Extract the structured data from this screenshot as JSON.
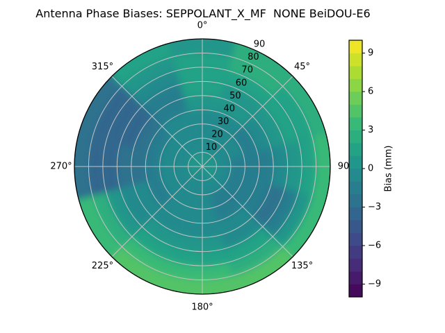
{
  "chart_data": {
    "type": "heatmap",
    "projection": "polar",
    "title": "Antenna Phase Biases: SEPPOLANT_X_MF  NONE BeiDOU-E6",
    "angular_axis": {
      "unit": "degrees",
      "zero_location": "top",
      "direction": "clockwise",
      "tick_angles": [
        0,
        45,
        90,
        135,
        180,
        225,
        270,
        315
      ],
      "tick_labels": [
        "0°",
        "45°",
        "90",
        "135°",
        "180°",
        "225°",
        "270°",
        "315°"
      ]
    },
    "radial_axis": {
      "ticks": [
        10,
        20,
        30,
        40,
        50,
        60,
        70,
        80,
        90
      ],
      "max": 90,
      "label_angle_deg": 25
    },
    "grid": true,
    "azimuth_centers_deg": [
      0,
      30,
      60,
      90,
      120,
      150,
      180,
      210,
      240,
      270,
      300,
      330
    ],
    "ring_boundaries": [
      0,
      10,
      20,
      30,
      40,
      50,
      60,
      70,
      80,
      90
    ],
    "values_mm": [
      [
        0.2,
        -0.3,
        -0.6,
        -0.5,
        0.3,
        1.0,
        1.7,
        1.7,
        0.9
      ],
      [
        0.2,
        -0.3,
        -0.6,
        -0.7,
        0.0,
        0.6,
        1.3,
        2.1,
        2.4
      ],
      [
        0.1,
        -0.4,
        -0.9,
        -1.1,
        -0.6,
        0.3,
        1.0,
        1.7,
        2.8
      ],
      [
        0.0,
        -0.6,
        -1.1,
        -1.4,
        -1.2,
        -0.7,
        0.3,
        1.3,
        3.0
      ],
      [
        0.0,
        -0.7,
        -1.2,
        -1.5,
        -1.9,
        -2.3,
        -1.3,
        0.7,
        3.2
      ],
      [
        0.0,
        -0.7,
        -1.1,
        -1.2,
        -0.9,
        -0.3,
        1.0,
        2.5,
        4.2
      ],
      [
        -0.1,
        -0.7,
        -1.0,
        -1.0,
        -0.6,
        0.2,
        1.4,
        3.0,
        4.6
      ],
      [
        -0.1,
        -0.7,
        -1.0,
        -0.9,
        -0.4,
        0.4,
        1.7,
        3.2,
        4.6
      ],
      [
        0.0,
        -0.6,
        -1.0,
        -1.1,
        -0.7,
        -0.2,
        0.8,
        2.3,
        3.6
      ],
      [
        0.1,
        -0.5,
        -1.0,
        -1.6,
        -2.1,
        -2.9,
        -3.4,
        -3.2,
        -2.4
      ],
      [
        0.2,
        -0.4,
        -0.9,
        -1.5,
        -2.3,
        -3.1,
        -3.6,
        -3.3,
        -2.1
      ],
      [
        0.2,
        -0.3,
        -0.7,
        -1.0,
        -1.3,
        -1.5,
        -0.8,
        0.7,
        1.2
      ]
    ],
    "colorbar": {
      "label": "Bias (mm)",
      "vmin": -10,
      "vmax": 10,
      "band_step": 1,
      "tick_values": [
        9,
        6,
        3,
        0,
        -3,
        -6,
        -9
      ],
      "tick_labels": [
        "9",
        "6",
        "3",
        "0",
        "−3",
        "−6",
        "−9"
      ],
      "colormap": "viridis",
      "colormap_stops": [
        "#440154",
        "#482878",
        "#3e4989",
        "#31688e",
        "#26828e",
        "#1f9e89",
        "#35b779",
        "#6ece58",
        "#b5de2b",
        "#fde725"
      ]
    },
    "style": {
      "grid_color": "#c4c4c4",
      "spine_color": "#000000",
      "background": "#ffffff"
    }
  }
}
